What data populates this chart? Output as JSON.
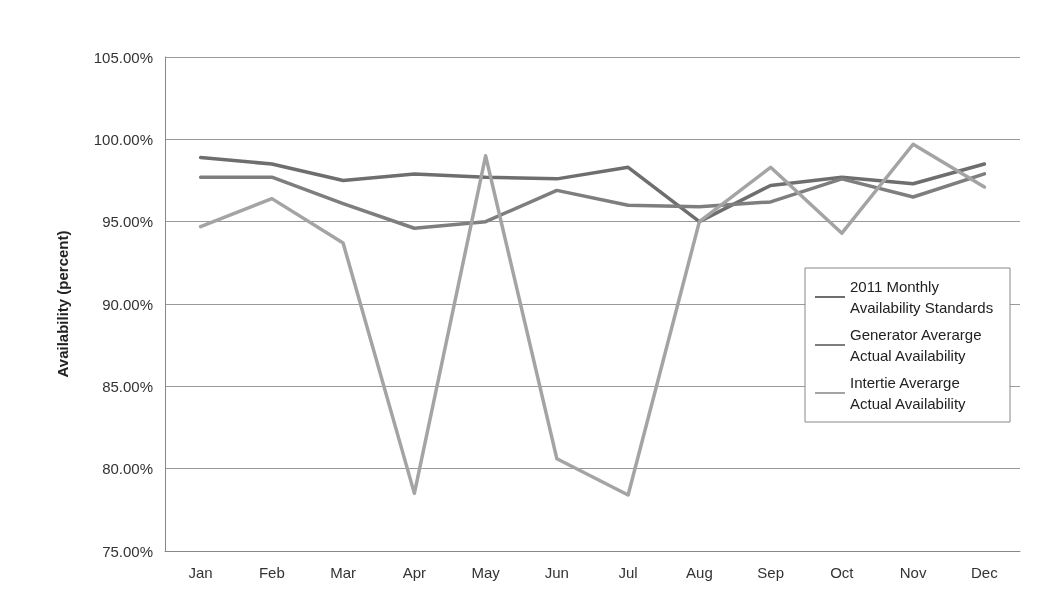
{
  "chart_data": {
    "type": "line",
    "ylabel": "Availability (percent)",
    "categories": [
      "Jan",
      "Feb",
      "Mar",
      "Apr",
      "May",
      "Jun",
      "Jul",
      "Aug",
      "Sep",
      "Oct",
      "Nov",
      "Dec"
    ],
    "series": [
      {
        "name": "2011 Monthly Availability Standards",
        "color": "#6e6e6e",
        "values": [
          98.9,
          98.5,
          97.5,
          97.9,
          97.7,
          97.6,
          98.3,
          95.0,
          97.2,
          97.7,
          97.3,
          98.5
        ]
      },
      {
        "name": "Generator Averarge Actual Availability",
        "color": "#7e7e7e",
        "values": [
          97.7,
          97.7,
          96.1,
          94.6,
          95.0,
          96.9,
          96.0,
          95.9,
          96.2,
          97.6,
          96.5,
          97.9
        ]
      },
      {
        "name": "Intertie Averarge Actual Availability",
        "color": "#a4a4a4",
        "values": [
          94.7,
          96.4,
          93.7,
          78.5,
          99.0,
          80.6,
          78.4,
          95.0,
          98.3,
          94.3,
          99.7,
          97.1
        ]
      }
    ],
    "ylim": [
      75,
      105
    ],
    "yticks": [
      {
        "value": 75,
        "label": "75.00%"
      },
      {
        "value": 80,
        "label": "80.00%"
      },
      {
        "value": 85,
        "label": "85.00%"
      },
      {
        "value": 90,
        "label": "90.00%"
      },
      {
        "value": 95,
        "label": "95.00%"
      },
      {
        "value": 100,
        "label": "100.00%"
      },
      {
        "value": 105,
        "label": "105.00%"
      }
    ],
    "grid": "y",
    "legend": "right",
    "marker": "none",
    "line_style": "solid"
  }
}
